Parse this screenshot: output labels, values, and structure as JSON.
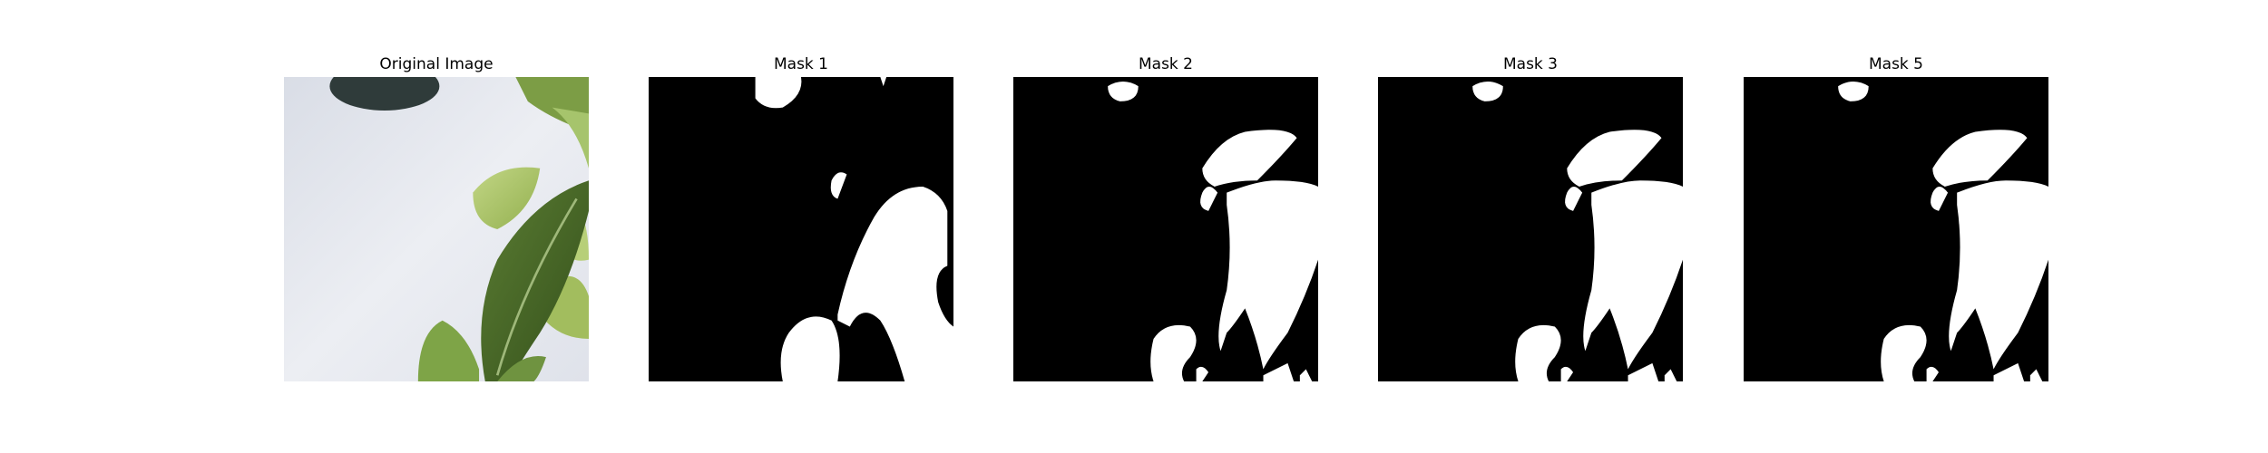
{
  "figure": {
    "panels": [
      {
        "title": "Original Image",
        "kind": "photo"
      },
      {
        "title": "Mask 1",
        "kind": "mask"
      },
      {
        "title": "Mask 2",
        "kind": "mask"
      },
      {
        "title": "Mask 3",
        "kind": "mask"
      },
      {
        "title": "Mask 5",
        "kind": "mask"
      }
    ]
  },
  "colors": {
    "background": "#ffffff",
    "mask_background": "#000000",
    "mask_foreground": "#ffffff",
    "photo_wall": "#e6e8ee",
    "leaf_dark": "#4d6b2a",
    "leaf_light": "#a9c46a"
  }
}
